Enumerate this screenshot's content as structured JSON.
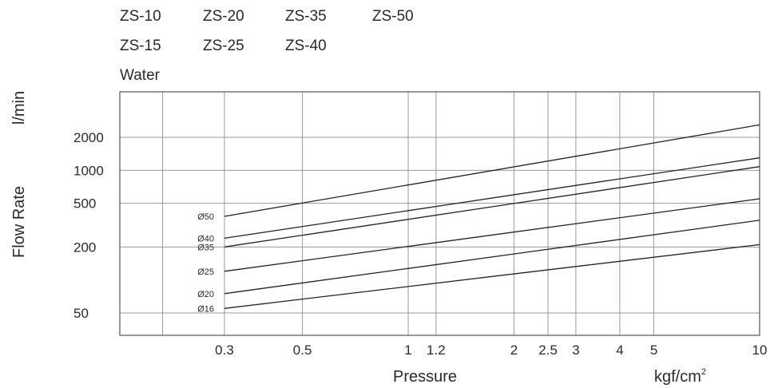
{
  "legend": {
    "models": [
      [
        "ZS-10",
        "ZS-20",
        "ZS-35",
        "ZS-50"
      ],
      [
        "ZS-15",
        "ZS-25",
        "ZS-40"
      ]
    ],
    "fluid": "Water"
  },
  "chart_data": {
    "type": "line",
    "title": "",
    "xlabel": "Pressure",
    "xunit": "kgf/cm",
    "xunit_sup": "2",
    "ylabel": "Flow Rate",
    "yunit": "l/min",
    "xscale": "log",
    "yscale": "log",
    "x_ticks": [
      0.3,
      0.5,
      1,
      1.2,
      2,
      2.5,
      3,
      4,
      5,
      10
    ],
    "x_tick_labels": [
      "0.3",
      "0.5",
      "1",
      "1.2",
      "2",
      "2.5",
      "3",
      "4",
      "5",
      "10"
    ],
    "y_ticks": [
      50,
      200,
      500,
      1000,
      2000
    ],
    "y_tick_labels": [
      "50",
      "200",
      "500",
      "1000",
      "2000"
    ],
    "grid": true,
    "series": [
      {
        "name": "Ø50",
        "x": [
          0.3,
          10
        ],
        "y": [
          380,
          2600
        ]
      },
      {
        "name": "Ø40",
        "x": [
          0.3,
          10
        ],
        "y": [
          240,
          1300
        ]
      },
      {
        "name": "Ø35",
        "x": [
          0.3,
          10
        ],
        "y": [
          200,
          1080
        ]
      },
      {
        "name": "Ø25",
        "x": [
          0.3,
          10
        ],
        "y": [
          120,
          550
        ]
      },
      {
        "name": "Ø20",
        "x": [
          0.3,
          10
        ],
        "y": [
          75,
          350
        ]
      },
      {
        "name": "Ø16",
        "x": [
          0.3,
          10
        ],
        "y": [
          55,
          210
        ]
      }
    ]
  }
}
